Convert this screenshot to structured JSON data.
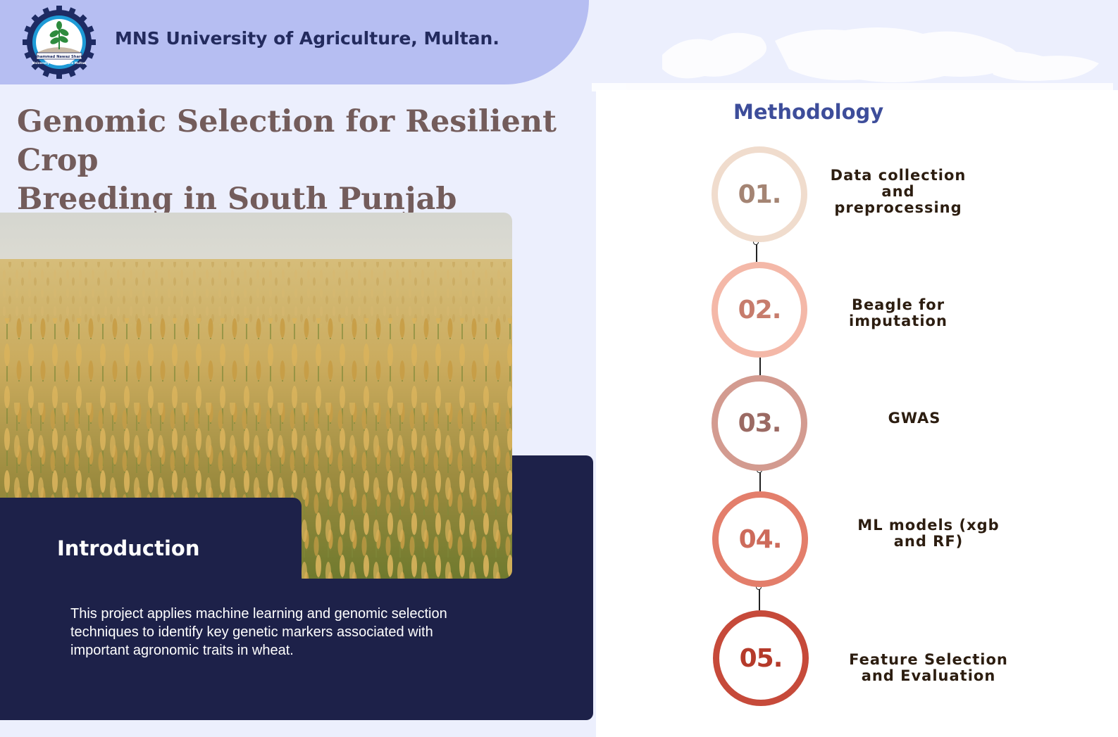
{
  "header": {
    "university_name": "MNS University of Agriculture, Multan.",
    "logo": {
      "icon": "university-seal-icon",
      "arc_text": "Muhammad Nawaz Shareef",
      "banner_text": "University of Agriculture Multan",
      "colors": {
        "gear": "#1e2b63",
        "ring": "#1e9bd7",
        "plant": "#2e8b3e"
      }
    }
  },
  "title": {
    "line1": "Genomic Selection for Resilient Crop",
    "line2": "Breeding in South Punjab"
  },
  "introduction": {
    "heading": "Introduction",
    "body": "This project applies machine learning and genomic selection techniques to identify key genetic markers associated with important agronomic traits in wheat."
  },
  "methodology": {
    "heading": "Methodology",
    "steps": [
      {
        "number": "01.",
        "label": "Data collection\nand\npreprocessing",
        "ring_color": "#f0dccd",
        "number_color": "#a48473"
      },
      {
        "number": "02.",
        "label": "Beagle for\nimputation",
        "ring_color": "#f4b8a8",
        "number_color": "#c77c6c"
      },
      {
        "number": "03.",
        "label": "GWAS",
        "ring_color": "#d39b90",
        "number_color": "#9b6a63"
      },
      {
        "number": "04.",
        "label": "ML models (xgb\nand RF)",
        "ring_color": "#e37e6b",
        "number_color": "#cd6b5b"
      },
      {
        "number": "05.",
        "label": "Feature Selection\nand Evaluation",
        "ring_color": "#c64a3a",
        "number_color": "#b53a2a"
      }
    ]
  },
  "colors": {
    "background": "#eceffd",
    "header_band": "#b6bef2",
    "navy": "#1d2149",
    "title": "#735c5b",
    "method_heading": "#3d4d9a"
  }
}
